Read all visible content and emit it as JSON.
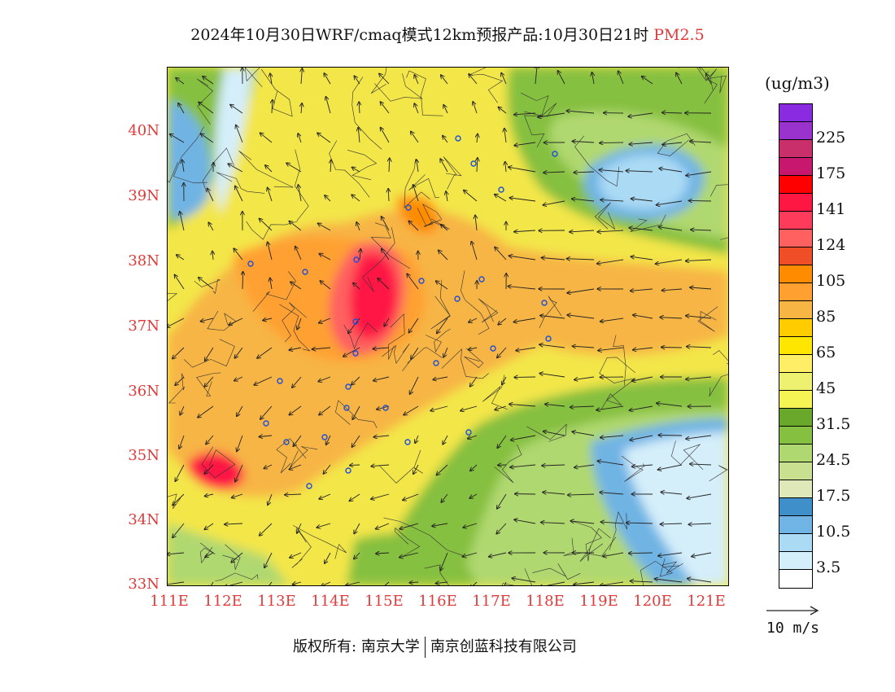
{
  "header": {
    "title": "2024年10月30日WRF/cmaq模式12km预报产品:10月30日21时",
    "pollutant": "PM2.5"
  },
  "map": {
    "lat_labels": [
      "40N",
      "39N",
      "38N",
      "37N",
      "36N",
      "35N",
      "34N",
      "33N"
    ],
    "lon_labels": [
      "111E",
      "112E",
      "113E",
      "114E",
      "115E",
      "116E",
      "117E",
      "118E",
      "119E",
      "120E",
      "121E"
    ],
    "lat_range": [
      33,
      41
    ],
    "lon_range": [
      111,
      121.4
    ]
  },
  "legend": {
    "unit": "(ug/m3)",
    "levels": [
      {
        "color": "#8a2be2",
        "label": ""
      },
      {
        "color": "#9a32cd",
        "label": "225"
      },
      {
        "color": "#c9306b",
        "label": ""
      },
      {
        "color": "#c8186e",
        "label": "175"
      },
      {
        "color": "#ff0000",
        "label": ""
      },
      {
        "color": "#ff1744",
        "label": "141"
      },
      {
        "color": "#ff3b5c",
        "label": ""
      },
      {
        "color": "#ff6060",
        "label": "124"
      },
      {
        "color": "#f04e26",
        "label": ""
      },
      {
        "color": "#ff8c00",
        "label": "105"
      },
      {
        "color": "#ffa030",
        "label": ""
      },
      {
        "color": "#f7b544",
        "label": "85"
      },
      {
        "color": "#ffcc00",
        "label": ""
      },
      {
        "color": "#ffe600",
        "label": "65"
      },
      {
        "color": "#ffee66",
        "label": ""
      },
      {
        "color": "#eef070",
        "label": "45"
      },
      {
        "color": "#f4f454",
        "label": ""
      },
      {
        "color": "#6aa82c",
        "label": "31.5"
      },
      {
        "color": "#86c040",
        "label": ""
      },
      {
        "color": "#b0d870",
        "label": "24.5"
      },
      {
        "color": "#c8e090",
        "label": ""
      },
      {
        "color": "#dfe8b8",
        "label": "17.5"
      },
      {
        "color": "#3f8fcb",
        "label": ""
      },
      {
        "color": "#6fb4e4",
        "label": "10.5"
      },
      {
        "color": "#aadaf4",
        "label": ""
      },
      {
        "color": "#d4eefa",
        "label": "3.5"
      },
      {
        "color": "#ffffff",
        "label": ""
      }
    ]
  },
  "wind_reference": {
    "label": "10 m/s"
  },
  "footer": {
    "owner_prefix": "版权所有:",
    "org1": "南京大学",
    "org2": "南京创蓝科技有限公司"
  }
}
